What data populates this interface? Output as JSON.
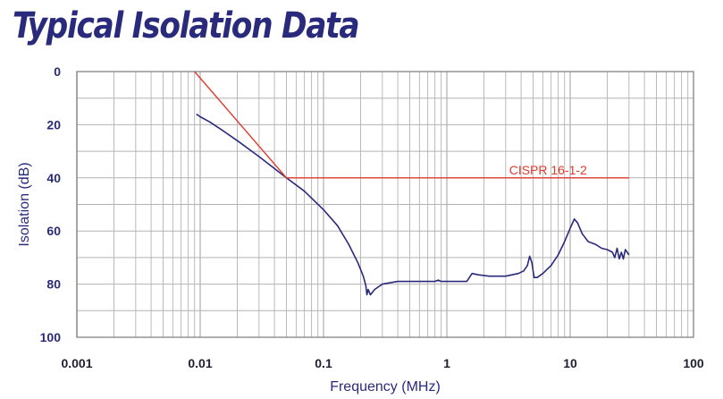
{
  "chart_data": {
    "type": "line",
    "title": "Typical Isolation Data",
    "xlabel": "Frequency (MHz)",
    "ylabel": "Isolation (dB)",
    "x_scale": "log",
    "xlim": [
      0.001,
      100
    ],
    "ylim": [
      0,
      100
    ],
    "y_inverted": true,
    "grid": true,
    "x_ticks": [
      "0.001",
      "0.01",
      "0.1",
      "1",
      "10",
      "100"
    ],
    "y_ticks": [
      "0",
      "20",
      "40",
      "60",
      "80",
      "100"
    ],
    "colors": {
      "title": "#2a2a7c",
      "curve": "#2a2a7c",
      "limit": "#e03a2c",
      "grid": "#b3b3b3"
    },
    "series": [
      {
        "name": "",
        "color": "#2a2a7c",
        "x": [
          0.0093,
          0.01,
          0.012,
          0.015,
          0.02,
          0.03,
          0.05,
          0.07,
          0.1,
          0.13,
          0.16,
          0.19,
          0.21,
          0.22,
          0.225,
          0.23,
          0.24,
          0.26,
          0.3,
          0.4,
          0.5,
          0.7,
          0.8,
          0.85,
          0.9,
          1.0,
          1.3,
          1.45,
          1.6,
          1.8,
          2.2,
          3.0,
          3.8,
          4.2,
          4.5,
          4.7,
          4.9,
          5.1,
          5.4,
          6.0,
          7.0,
          8.0,
          9.0,
          10.0,
          10.8,
          11.5,
          12.5,
          14.0,
          16.0,
          18.0,
          20.0,
          22.0,
          23.0,
          24.0,
          25.0,
          26.0,
          27.0,
          28.0,
          29.0,
          30.0
        ],
        "y": [
          16,
          17,
          19,
          22,
          26,
          32,
          40,
          45,
          52,
          58,
          65,
          72,
          77,
          80.5,
          84,
          82,
          84,
          82,
          80,
          79,
          79,
          79,
          79,
          78.5,
          79,
          79,
          79,
          79,
          76,
          76.5,
          77,
          77,
          76,
          75,
          73,
          69.5,
          72,
          77.5,
          77.5,
          76,
          73,
          69,
          64,
          59,
          55.5,
          57,
          61,
          64,
          65,
          66.5,
          67,
          68,
          70,
          66.5,
          70.5,
          68,
          70.5,
          67,
          68,
          69
        ]
      },
      {
        "name": "CISPR 16-1-2",
        "color": "#e03a2c",
        "x": [
          0.009,
          0.05,
          30
        ],
        "y": [
          0,
          40,
          40
        ]
      }
    ],
    "annotations": [
      {
        "text": "CISPR 16-1-2",
        "x": 3.2,
        "y": 37
      }
    ]
  }
}
